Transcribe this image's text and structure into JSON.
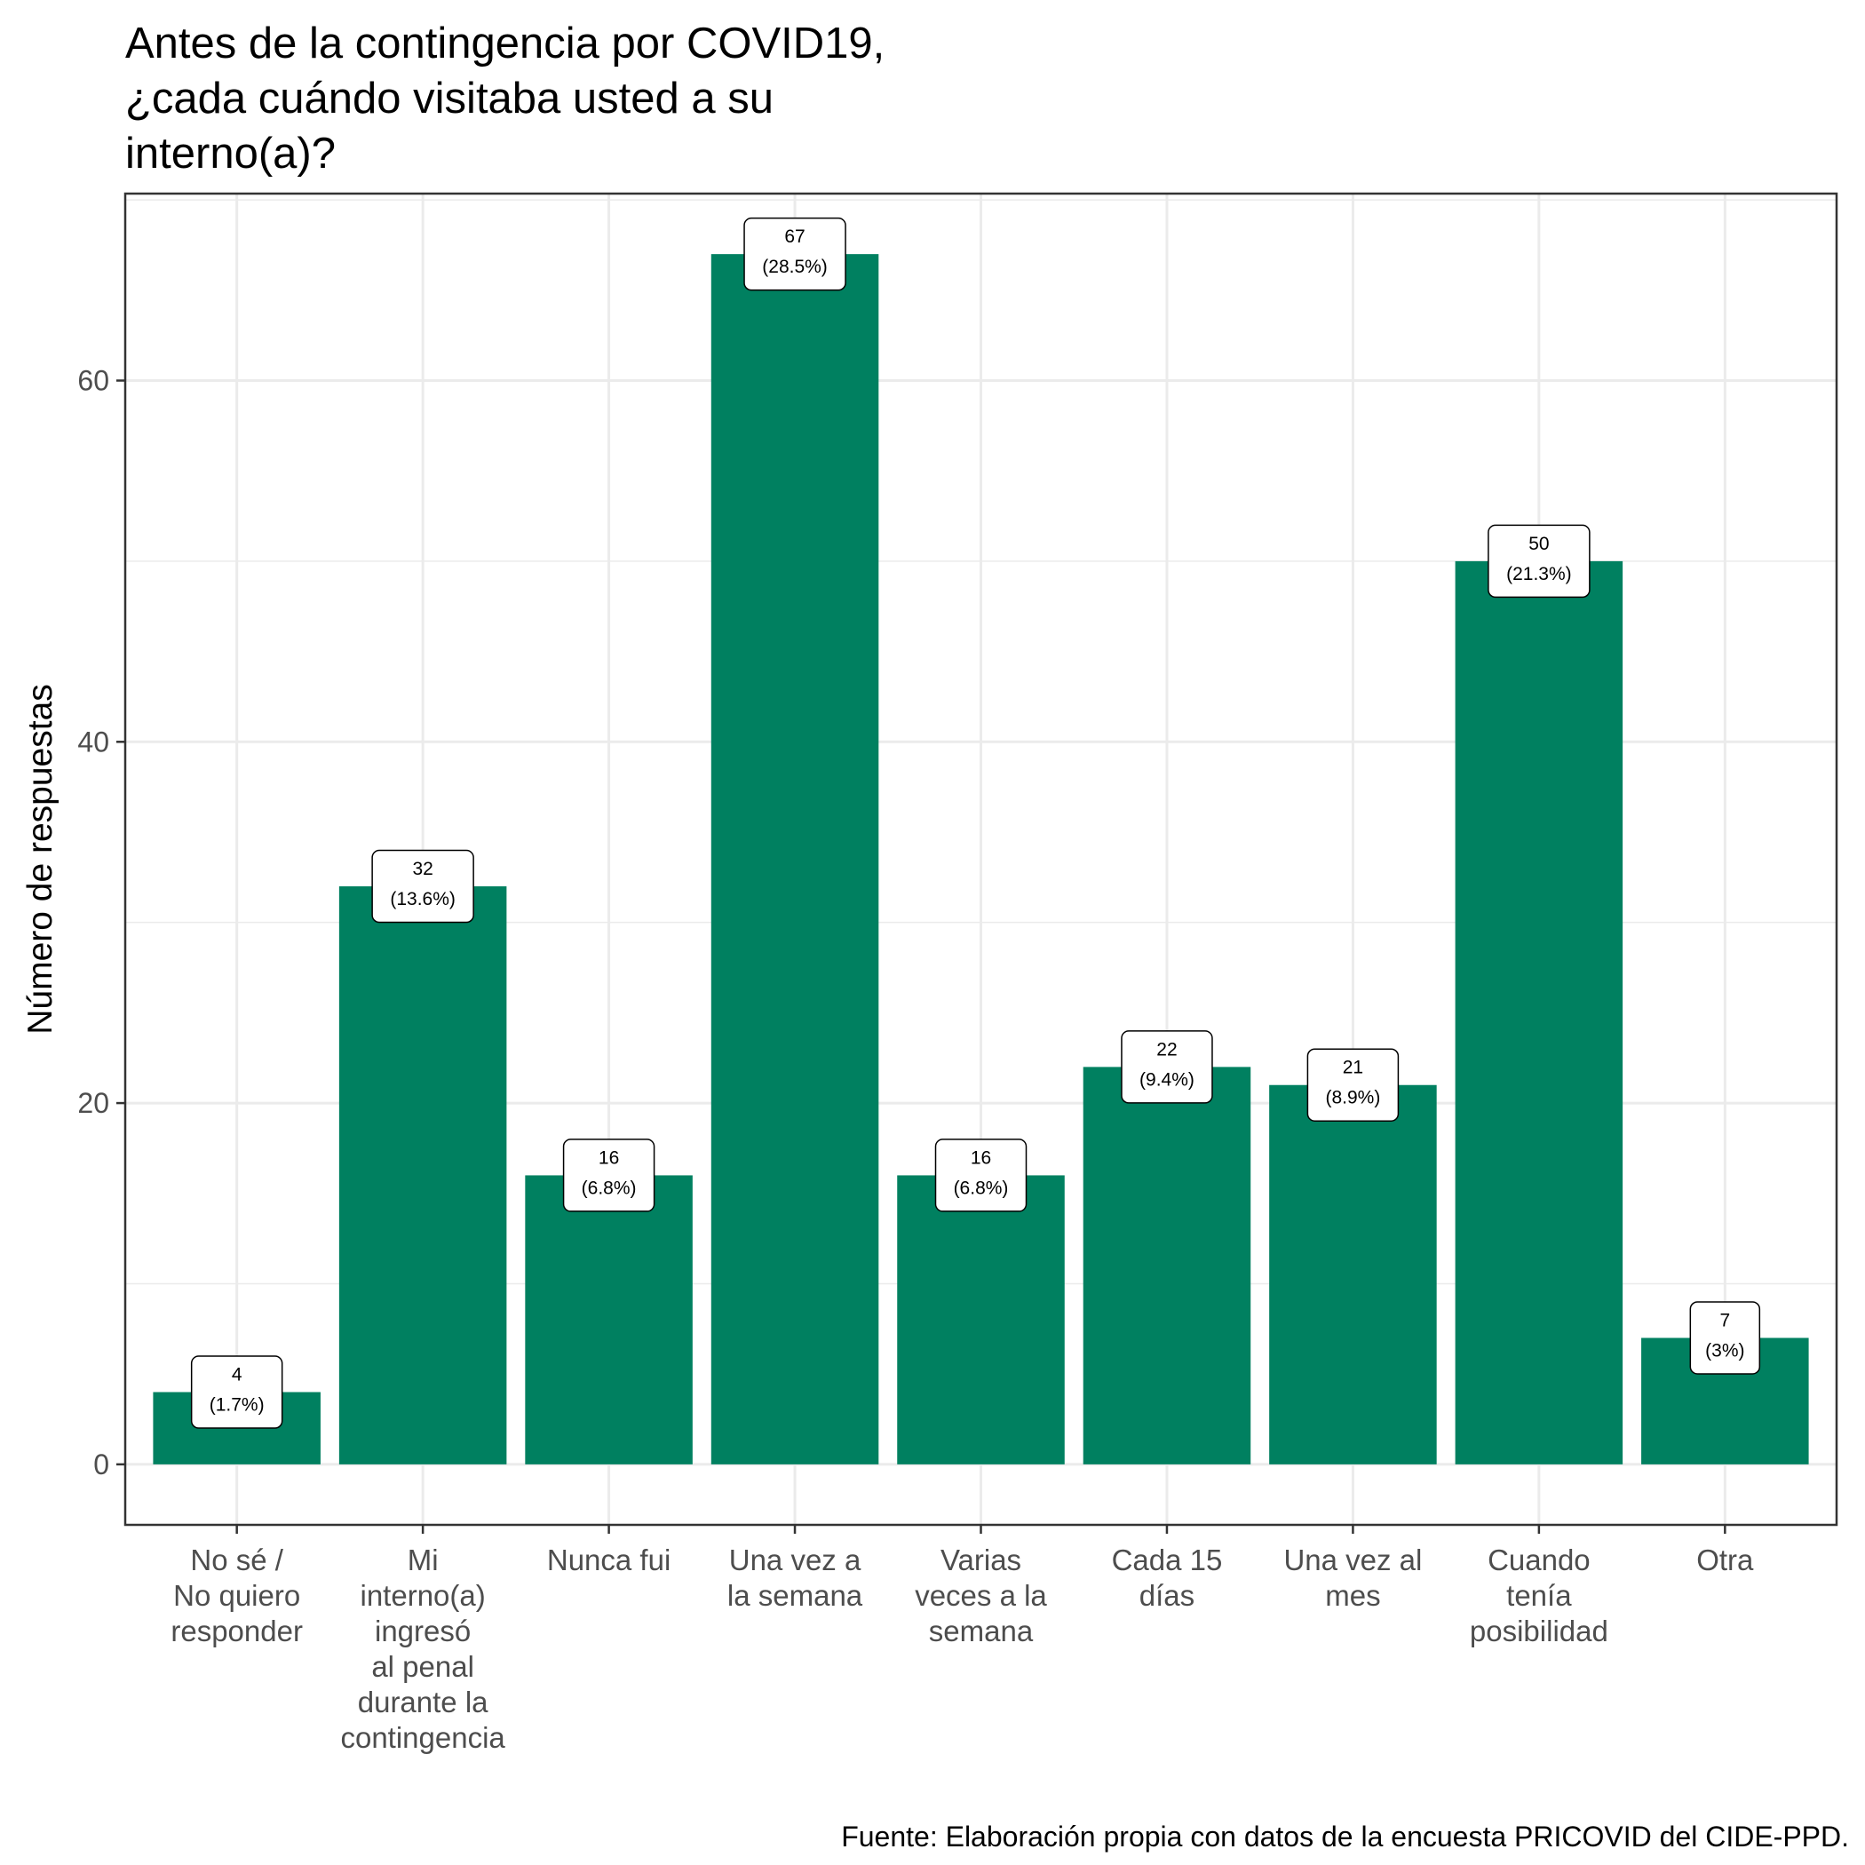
{
  "chart_data": {
    "type": "bar",
    "title": [
      "Antes de la contingencia por COVID19,",
      "¿cada cuándo visitaba usted a su",
      "interno(a)?"
    ],
    "ylabel": "Número de respuestas",
    "xlabel": "",
    "caption": "Fuente: Elaboración propia con datos de la encuesta PRICOVID del CIDE-PPD.",
    "categories": [
      [
        "No sé /",
        "No quiero",
        "responder"
      ],
      [
        "Mi",
        "interno(a)",
        "ingresó",
        "al penal",
        "durante la",
        "contingencia"
      ],
      [
        "Nunca fui"
      ],
      [
        "Una vez a",
        "la semana"
      ],
      [
        "Varias",
        "veces a la",
        "semana"
      ],
      [
        "Cada 15",
        "días"
      ],
      [
        "Una vez al",
        "mes"
      ],
      [
        "Cuando",
        "tenía",
        "posibilidad"
      ],
      [
        "Otra"
      ]
    ],
    "values": [
      4,
      32,
      16,
      67,
      16,
      22,
      21,
      50,
      7
    ],
    "labels": [
      [
        "4",
        "(1.7%)"
      ],
      [
        "32",
        "(13.6%)"
      ],
      [
        "16",
        "(6.8%)"
      ],
      [
        "67",
        "(28.5%)"
      ],
      [
        "16",
        "(6.8%)"
      ],
      [
        "22",
        "(9.4%)"
      ],
      [
        "21",
        "(8.9%)"
      ],
      [
        "50",
        "(21.3%)"
      ],
      [
        "7",
        "(3%)"
      ]
    ],
    "yticks": [
      0,
      20,
      40,
      60
    ],
    "ylim": [
      -3.35,
      70.35
    ],
    "grid": true,
    "legend": "none",
    "bar_color": "#008060"
  }
}
